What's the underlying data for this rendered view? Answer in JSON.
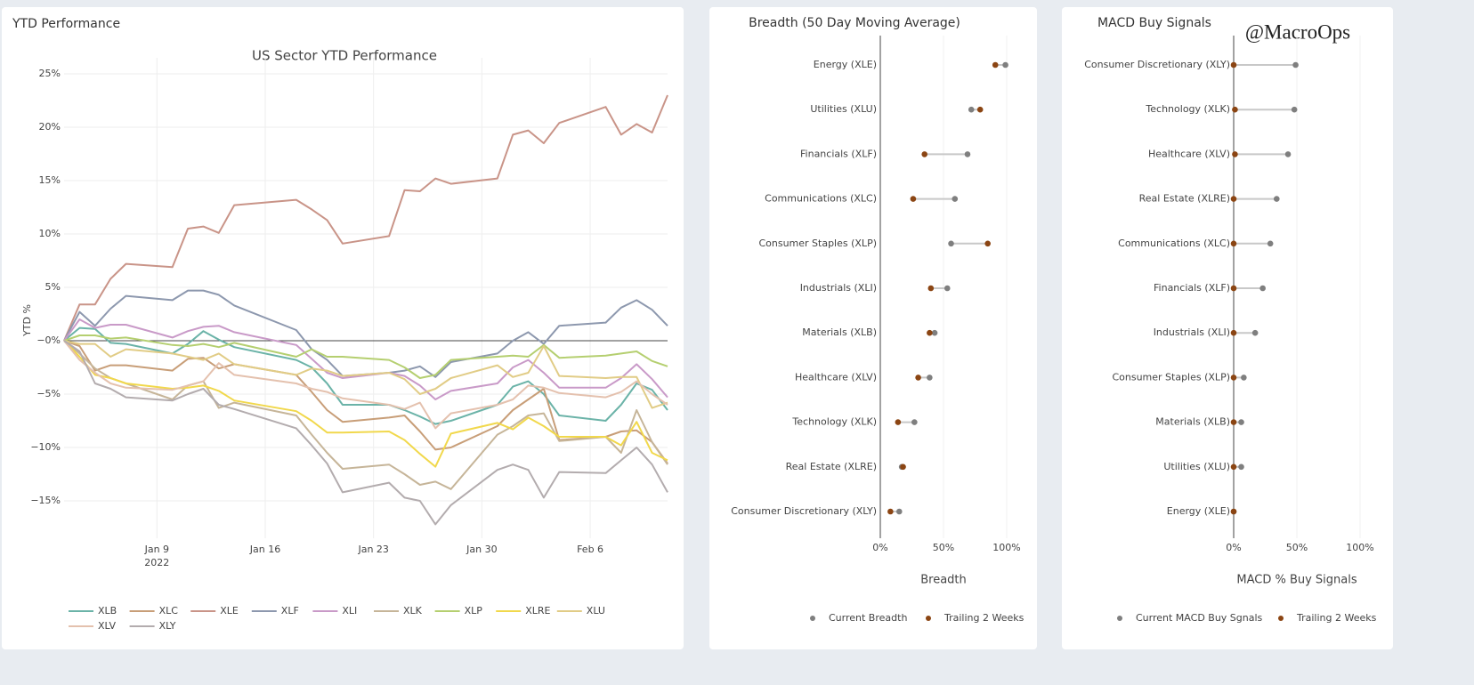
{
  "chart_data": [
    {
      "type": "line",
      "panel_title": "YTD Performance",
      "title": "US Sector YTD Performance",
      "y_label": "YTD %",
      "x": [
        "2022-01-03",
        "2022-01-04",
        "2022-01-05",
        "2022-01-06",
        "2022-01-07",
        "2022-01-10",
        "2022-01-11",
        "2022-01-12",
        "2022-01-13",
        "2022-01-14",
        "2022-01-18",
        "2022-01-19",
        "2022-01-20",
        "2022-01-21",
        "2022-01-24",
        "2022-01-25",
        "2022-01-26",
        "2022-01-27",
        "2022-01-28",
        "2022-01-31",
        "2022-02-01",
        "2022-02-02",
        "2022-02-03",
        "2022-02-04",
        "2022-02-07",
        "2022-02-08",
        "2022-02-09",
        "2022-02-10",
        "2022-02-11"
      ],
      "xlim": [
        "2022-01-03",
        "2022-02-11"
      ],
      "xticks": [
        {
          "value": "2022-01-09",
          "label": "Jan 9"
        },
        {
          "value": "2022-01-16",
          "label": "Jan 16"
        },
        {
          "value": "2022-01-23",
          "label": "Jan 23"
        },
        {
          "value": "2022-01-30",
          "label": "Jan 30"
        },
        {
          "value": "2022-02-06",
          "label": "Feb 6"
        }
      ],
      "xtick_year": "2022",
      "ylim": [
        -18.5,
        26.5
      ],
      "yticks": [
        {
          "value": -15,
          "label": "−15%"
        },
        {
          "value": -10,
          "label": "−10%"
        },
        {
          "value": -5,
          "label": "−5%"
        },
        {
          "value": 0,
          "label": "−0%"
        },
        {
          "value": 5,
          "label": "5%"
        },
        {
          "value": 10,
          "label": "10%"
        },
        {
          "value": 15,
          "label": "15%"
        },
        {
          "value": 20,
          "label": "20%"
        },
        {
          "value": 25,
          "label": "25%"
        }
      ],
      "grid": true,
      "zero_line": true,
      "series": [
        {
          "name": "XLB",
          "color": "#6bb3a8",
          "values": [
            0,
            1.2,
            1.1,
            -0.2,
            -0.3,
            -1.2,
            -0.3,
            0.9,
            0.1,
            -0.6,
            -1.8,
            -2.5,
            -4.0,
            -6.0,
            -6.0,
            -6.5,
            -7.1,
            -7.8,
            -7.5,
            -6.0,
            -4.3,
            -3.8,
            -5.0,
            -7.0,
            -7.5,
            -6.0,
            -4.0,
            -4.6,
            -6.5
          ]
        },
        {
          "name": "XLC",
          "color": "#c89e78",
          "values": [
            0,
            -0.5,
            -2.8,
            -2.3,
            -2.3,
            -2.8,
            -1.7,
            -1.6,
            -2.6,
            -2.2,
            -3.2,
            -4.8,
            -6.5,
            -7.6,
            -7.2,
            -7.0,
            -8.5,
            -10.2,
            -10.0,
            -8.0,
            -6.5,
            -5.5,
            -4.5,
            -9.3,
            -9.0,
            -8.5,
            -8.4,
            -9.5,
            -11.5
          ]
        },
        {
          "name": "XLE",
          "color": "#c99488",
          "values": [
            0,
            3.4,
            3.4,
            5.8,
            7.2,
            6.9,
            10.5,
            10.7,
            10.1,
            12.7,
            13.2,
            12.3,
            11.3,
            9.1,
            9.8,
            14.1,
            14.0,
            15.2,
            14.7,
            15.2,
            19.3,
            19.7,
            18.5,
            20.4,
            21.9,
            19.3,
            20.3,
            19.5,
            23.0
          ]
        },
        {
          "name": "XLF",
          "color": "#8d98ae",
          "values": [
            0,
            2.7,
            1.4,
            3.0,
            4.2,
            3.8,
            4.7,
            4.7,
            4.3,
            3.3,
            1.0,
            -0.8,
            -1.8,
            -3.3,
            -3.0,
            -2.8,
            -2.4,
            -3.4,
            -2.0,
            -1.2,
            0,
            0.8,
            -0.3,
            1.4,
            1.7,
            3.1,
            3.8,
            2.9,
            1.4
          ]
        },
        {
          "name": "XLI",
          "color": "#c99ac8",
          "values": [
            0,
            2.0,
            1.2,
            1.5,
            1.5,
            0.3,
            0.9,
            1.3,
            1.4,
            0.8,
            -0.4,
            -1.7,
            -3.0,
            -3.5,
            -3.0,
            -3.3,
            -4.2,
            -5.5,
            -4.7,
            -4.0,
            -2.5,
            -1.8,
            -3.0,
            -4.4,
            -4.4,
            -3.5,
            -2.2,
            -3.6,
            -5.3
          ]
        },
        {
          "name": "XLK",
          "color": "#c6b599",
          "values": [
            0,
            -1.2,
            -2.6,
            -3.5,
            -4.0,
            -5.5,
            -4.2,
            -3.8,
            -6.3,
            -5.8,
            -7.0,
            -8.8,
            -10.5,
            -12.0,
            -11.6,
            -12.5,
            -13.5,
            -13.2,
            -13.9,
            -8.8,
            -8.0,
            -7.0,
            -6.8,
            -9.4,
            -9.0,
            -10.5,
            -6.5,
            -9.5,
            -11.6
          ]
        },
        {
          "name": "XLP",
          "color": "#b5cf70",
          "values": [
            0,
            0.5,
            0.5,
            0.2,
            0.3,
            -0.4,
            -0.5,
            -0.3,
            -0.6,
            -0.2,
            -1.5,
            -0.8,
            -1.5,
            -1.5,
            -1.8,
            -2.5,
            -3.5,
            -3.2,
            -1.8,
            -1.5,
            -1.4,
            -1.5,
            -0.4,
            -1.6,
            -1.4,
            -1.2,
            -1.0,
            -1.9,
            -2.4
          ]
        },
        {
          "name": "XLRE",
          "color": "#f1d84c",
          "values": [
            0,
            -1.5,
            -3.2,
            -3.5,
            -4.0,
            -4.5,
            -4.4,
            -4.2,
            -4.7,
            -5.6,
            -6.6,
            -7.5,
            -8.6,
            -8.6,
            -8.5,
            -9.3,
            -10.6,
            -11.8,
            -8.7,
            -7.7,
            -8.3,
            -7.2,
            -8.0,
            -9.0,
            -9.0,
            -9.8,
            -7.6,
            -10.5,
            -11.2
          ]
        },
        {
          "name": "XLU",
          "color": "#e1cc86",
          "values": [
            0,
            -0.3,
            -0.3,
            -1.5,
            -0.8,
            -1.2,
            -1.5,
            -1.8,
            -1.2,
            -2.2,
            -3.2,
            -2.6,
            -2.8,
            -3.3,
            -3.0,
            -3.6,
            -5.0,
            -4.5,
            -3.5,
            -2.3,
            -3.4,
            -3.0,
            -0.5,
            -3.3,
            -3.5,
            -3.4,
            -3.4,
            -6.3,
            -5.8
          ]
        },
        {
          "name": "XLV",
          "color": "#e4c1ae",
          "values": [
            0,
            -1.8,
            -3.0,
            -4.0,
            -4.4,
            -4.6,
            -4.2,
            -3.8,
            -2.1,
            -3.2,
            -4.0,
            -4.5,
            -4.8,
            -5.4,
            -6.0,
            -6.4,
            -5.8,
            -8.2,
            -6.8,
            -6.0,
            -5.5,
            -4.2,
            -4.4,
            -4.9,
            -5.3,
            -4.8,
            -3.8,
            -5.0,
            -6.0
          ]
        },
        {
          "name": "XLY",
          "color": "#b3acae",
          "values": [
            0,
            -1.0,
            -4.0,
            -4.5,
            -5.3,
            -5.6,
            -5.0,
            -4.5,
            -6.0,
            -6.4,
            -8.2,
            -9.8,
            -11.5,
            -14.2,
            -13.3,
            -14.7,
            -15.0,
            -17.2,
            -15.4,
            -12.1,
            -11.6,
            -12.1,
            -14.7,
            -12.3,
            -12.4,
            -11.2,
            -10.0,
            -11.6,
            -14.2
          ]
        }
      ]
    },
    {
      "type": "dumbbell",
      "title": "Breadth (50 Day Moving Average)",
      "x_label": "Breadth",
      "categories": [
        "Energy (XLE)",
        "Utilities (XLU)",
        "Financials (XLF)",
        "Communications (XLC)",
        "Consumer Staples (XLP)",
        "Industrials (XLI)",
        "Materials (XLB)",
        "Healthcare (XLV)",
        "Technology (XLK)",
        "Real Estate (XLRE)",
        "Consumer Discretionary (XLY)"
      ],
      "xlim": [
        0,
        100
      ],
      "xticks": [
        {
          "value": 0,
          "label": "0%"
        },
        {
          "value": 50,
          "label": "50%"
        },
        {
          "value": 100,
          "label": "100%"
        }
      ],
      "series": [
        {
          "name": "Current Breadth",
          "color": "#7f7f7f",
          "values": [
            99,
            72,
            69,
            59,
            56,
            53,
            43,
            39,
            27,
            17,
            15
          ]
        },
        {
          "name": "Trailing 2 Weeks",
          "color": "#8b4513",
          "values": [
            91,
            79,
            35,
            26,
            85,
            40,
            39,
            30,
            14,
            18,
            8
          ]
        }
      ]
    },
    {
      "type": "dumbbell",
      "title": "MACD Buy Signals",
      "x_label": "MACD % Buy Signals",
      "annotation": "@MacroOps",
      "categories": [
        "Consumer Discretionary (XLY)",
        "Technology (XLK)",
        "Healthcare (XLV)",
        "Real Estate (XLRE)",
        "Communications (XLC)",
        "Financials (XLF)",
        "Industrials (XLI)",
        "Consumer Staples (XLP)",
        "Materials (XLB)",
        "Utilities (XLU)",
        "Energy (XLE)"
      ],
      "xlim": [
        0,
        100
      ],
      "xticks": [
        {
          "value": 0,
          "label": "0%"
        },
        {
          "value": 50,
          "label": "50%"
        },
        {
          "value": 100,
          "label": "100%"
        }
      ],
      "series": [
        {
          "name": "Current MACD Buy Sgnals",
          "color": "#7f7f7f",
          "values": [
            49,
            48,
            43,
            34,
            29,
            23,
            17,
            8,
            6,
            6,
            0
          ]
        },
        {
          "name": "Trailing 2 Weeks",
          "color": "#8b4513",
          "values": [
            0,
            1,
            1,
            0,
            0,
            0,
            0,
            0,
            0,
            0,
            0
          ]
        }
      ]
    }
  ]
}
